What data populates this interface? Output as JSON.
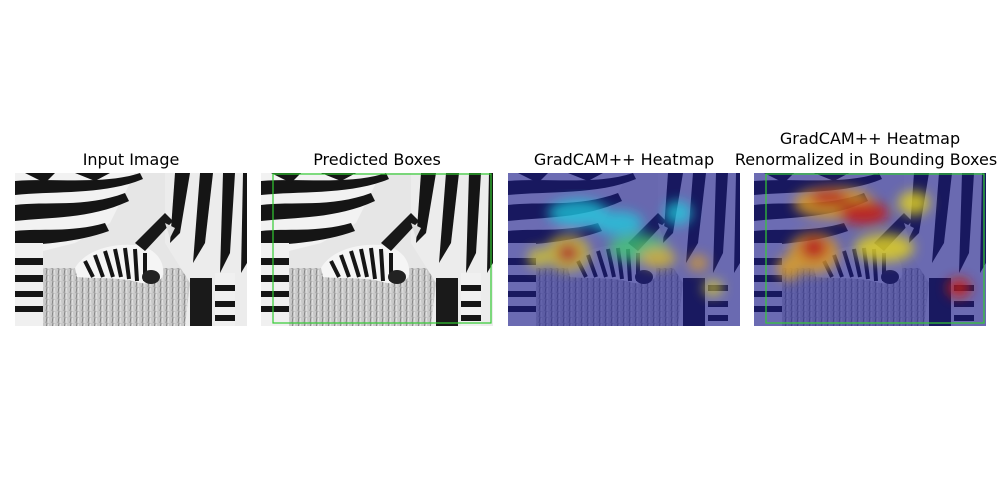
{
  "figure": {
    "panels": [
      {
        "title": "Input Image"
      },
      {
        "title": "Predicted Boxes"
      },
      {
        "title": "GradCAM++ Heatmap"
      },
      {
        "title_line1": "GradCAM++ Heatmap",
        "title_line2": "Renormalized in Bounding Boxes"
      }
    ]
  },
  "colors": {
    "background": "#ffffff",
    "bbox": "#33cc33",
    "heatmap_low": "#1a1a8c",
    "heatmap_mid": "#1fd0e0",
    "heatmap_high": "#c81a10"
  },
  "icons": [
    "zebra-photo"
  ]
}
